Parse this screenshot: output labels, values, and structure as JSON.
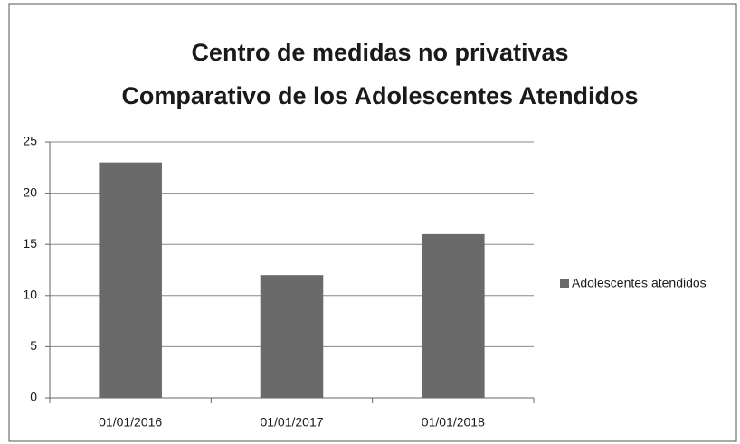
{
  "chart_data": {
    "type": "bar",
    "title": [
      "Centro de medidas no privativas",
      "Comparativo de los Adolescentes  Atendidos"
    ],
    "categories": [
      "01/01/2016",
      "01/01/2017",
      "01/01/2018"
    ],
    "series": [
      {
        "name": "Adolescentes atendidos",
        "color": "#6a6a6a",
        "values": [
          23,
          12,
          16
        ]
      }
    ],
    "ylim": [
      0,
      25
    ],
    "yticks": [
      0,
      5,
      10,
      15,
      20,
      25
    ],
    "grid": true,
    "legend": "right"
  }
}
